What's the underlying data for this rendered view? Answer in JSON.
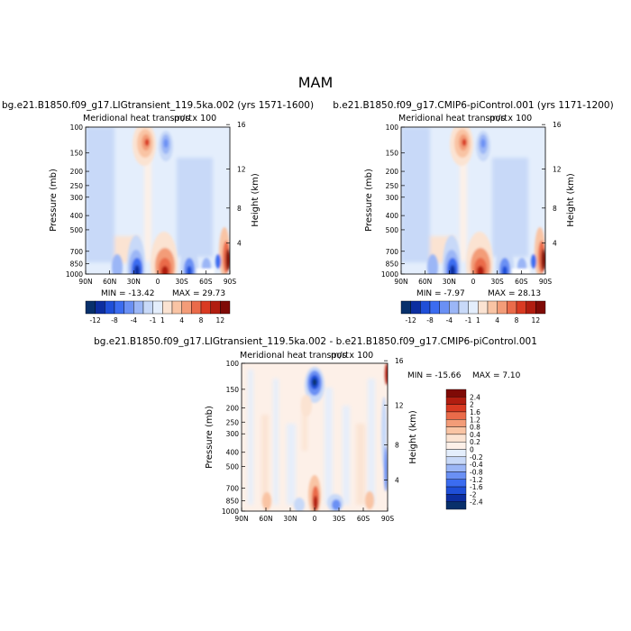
{
  "figure_title": "MAM",
  "chart_data": [
    {
      "type": "heatmap",
      "case_title": "bg.e21.B1850.f09_g17.LIGtransient_119.5ka.002 (yrs 1571-1600)",
      "subtitle": "Meridional heat transport",
      "units": "m/s x 100",
      "ylabel": "Pressure (mb)",
      "y2label": "Height (km)",
      "x_ticks": [
        "90N",
        "60N",
        "30N",
        "0",
        "30S",
        "60S",
        "90S"
      ],
      "y_ticks": [
        "100",
        "150",
        "200",
        "250",
        "300",
        "400",
        "500",
        "700",
        "850",
        "1000"
      ],
      "y2_ticks": [
        "16",
        "12",
        "8",
        "4"
      ],
      "min_label": "MIN = -13.42",
      "max_label": "MAX =  29.73",
      "colorbar_labels": [
        "-12",
        "-8",
        "-4",
        "-1",
        "1",
        "4",
        "8",
        "12"
      ]
    },
    {
      "type": "heatmap",
      "case_title": "b.e21.B1850.f09_g17.CMIP6-piControl.001 (yrs 1171-1200)",
      "subtitle": "Meridional heat transport",
      "units": "m/s x 100",
      "ylabel": "Pressure (mb)",
      "y2label": "Height (km)",
      "x_ticks": [
        "90N",
        "60N",
        "30N",
        "0",
        "30S",
        "60S",
        "90S"
      ],
      "y_ticks": [
        "100",
        "150",
        "200",
        "250",
        "300",
        "400",
        "500",
        "700",
        "850",
        "1000"
      ],
      "y2_ticks": [
        "16",
        "12",
        "8",
        "4"
      ],
      "min_label": "MIN =  -7.97",
      "max_label": "MAX =  28.13",
      "colorbar_labels": [
        "-12",
        "-8",
        "-4",
        "-1",
        "1",
        "4",
        "8",
        "12"
      ]
    },
    {
      "type": "heatmap",
      "case_title": "bg.e21.B1850.f09_g17.LIGtransient_119.5ka.002 - b.e21.B1850.f09_g17.CMIP6-piControl.001",
      "subtitle": "Meridional heat transport",
      "units": "m/s x 100",
      "ylabel": "Pressure (mb)",
      "y2label": "Height (km)",
      "x_ticks": [
        "90N",
        "60N",
        "30N",
        "0",
        "30S",
        "60S",
        "90S"
      ],
      "y_ticks": [
        "100",
        "150",
        "200",
        "250",
        "300",
        "400",
        "500",
        "700",
        "850",
        "1000"
      ],
      "y2_ticks": [
        "16",
        "12",
        "8",
        "4"
      ],
      "min_label": "MIN = -15.66",
      "max_label": "MAX =   7.10",
      "colorbar_labels": [
        "2.4",
        "2",
        "1.6",
        "1.2",
        "0.8",
        "0.4",
        "0.2",
        "0",
        "-0.2",
        "-0.4",
        "-0.8",
        "-1.2",
        "-1.6",
        "-2",
        "-2.4"
      ]
    }
  ],
  "colors": {
    "main_scale": [
      "#08306b",
      "#0c2ea0",
      "#1f4fd8",
      "#3b6cf0",
      "#6a90f4",
      "#9bb6f6",
      "#c8d9f8",
      "#e4eefc",
      "#fbe3d2",
      "#f9c4a4",
      "#f39c78",
      "#ea6b4a",
      "#d93a22",
      "#b11d10",
      "#7f0a06"
    ],
    "diff_scale": [
      "#7f0a06",
      "#b11d10",
      "#d93a22",
      "#ea6b4a",
      "#f39c78",
      "#f9c4a4",
      "#fbe3d2",
      "#fdf0e8",
      "#e4eefc",
      "#c8d9f8",
      "#9bb6f6",
      "#6a90f4",
      "#3b6cf0",
      "#1f4fd8",
      "#0c2ea0",
      "#08306b"
    ]
  }
}
